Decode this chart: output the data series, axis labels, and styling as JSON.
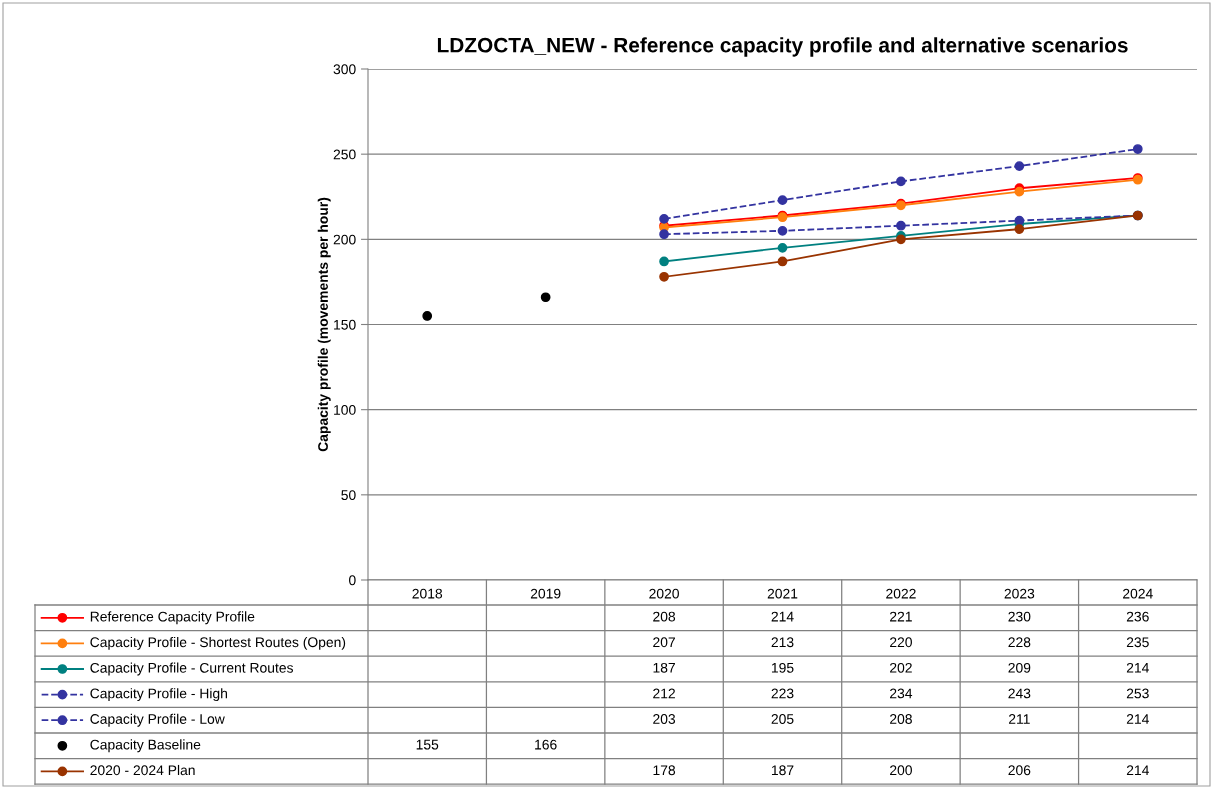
{
  "chart_data": {
    "type": "line",
    "title": "LDZOCTA_NEW - Reference capacity profile and alternative scenarios",
    "ylabel": "Capacity profile (movements per hour)",
    "categories": [
      "2018",
      "2019",
      "2020",
      "2021",
      "2022",
      "2023",
      "2024"
    ],
    "ylim": [
      0,
      300
    ],
    "yticks": [
      0,
      50,
      100,
      150,
      200,
      250,
      300
    ],
    "grid": "y",
    "legend": "bottom",
    "data_labels": true,
    "marker": "circle",
    "series": [
      {
        "name": "Reference Capacity Profile",
        "color": "#ff0000",
        "line_style": "solid",
        "values": [
          null,
          null,
          208,
          214,
          221,
          230,
          236
        ]
      },
      {
        "name": "Capacity Profile - Shortest Routes (Open)",
        "color": "#ff7f0e",
        "line_style": "solid",
        "values": [
          null,
          null,
          207,
          213,
          220,
          228,
          235
        ]
      },
      {
        "name": "Capacity Profile - Current Routes",
        "color": "#008080",
        "line_style": "solid",
        "values": [
          null,
          null,
          187,
          195,
          202,
          209,
          214
        ]
      },
      {
        "name": "Capacity Profile - High",
        "color": "#3333a0",
        "line_style": "dashed",
        "values": [
          null,
          null,
          212,
          223,
          234,
          243,
          253
        ]
      },
      {
        "name": "Capacity Profile - Low",
        "color": "#3333a0",
        "line_style": "dashed",
        "values": [
          null,
          null,
          203,
          205,
          208,
          211,
          214
        ]
      },
      {
        "name": "Capacity Baseline",
        "color": "#000000",
        "type": "scatter",
        "values": [
          155,
          166,
          null,
          null,
          null,
          null,
          null
        ]
      },
      {
        "name": "2020 - 2024 Plan",
        "color": "#993300",
        "line_style": "solid",
        "values": [
          null,
          null,
          178,
          187,
          200,
          206,
          214
        ]
      }
    ]
  }
}
